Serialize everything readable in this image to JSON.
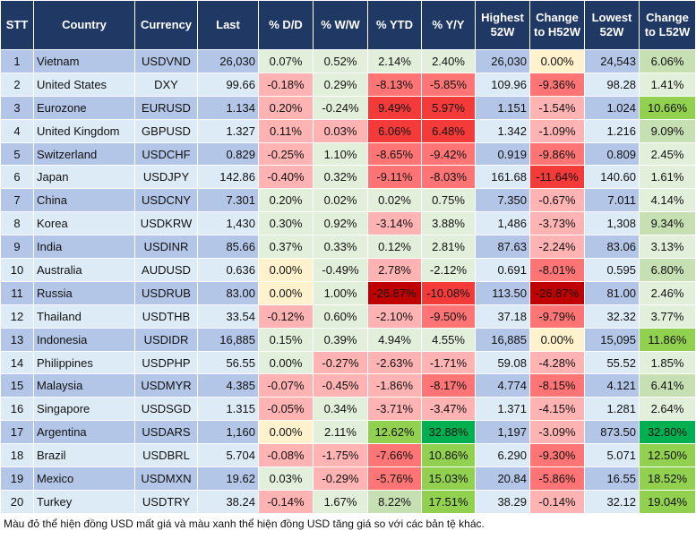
{
  "headers": [
    "STT",
    "Country",
    "Currency",
    "Last",
    "% D/D",
    "% W/W",
    "% YTD",
    "% Y/Y",
    "Highest 52W",
    "Change to H52W",
    "Lowest 52W",
    "Change to L52W"
  ],
  "colors": {
    "header": "#203864",
    "row_odd": "#b4c6e7",
    "row_even": "#ddebf7",
    "light_green": "#e2efda",
    "green2": "#c6e0b4",
    "green3": "#92d050",
    "green4": "#00b050",
    "red1": "#ffb3b3",
    "red2": "#ff7575",
    "red3": "#f53a3a",
    "red4": "#c00000",
    "yellow": "#fff2cc"
  },
  "rows": [
    {
      "stt": "1",
      "country": "Vietnam",
      "currency": "USDVND",
      "last": "26,030",
      "dd": "0.07%",
      "ww": "0.52%",
      "ytd": "2.14%",
      "yy": "2.40%",
      "high": "26,030",
      "ch": "0.00%",
      "low": "24,543",
      "cl": "6.06%",
      "cls": [
        "w",
        "w",
        "w",
        "w",
        "y",
        "g2"
      ]
    },
    {
      "stt": "2",
      "country": "United States",
      "currency": "DXY",
      "last": "99.66",
      "dd": "-0.18%",
      "ww": "0.29%",
      "ytd": "-8.13%",
      "yy": "-5.85%",
      "high": "109.96",
      "ch": "-9.36%",
      "low": "98.28",
      "cl": "1.41%",
      "cls": [
        "r1",
        "w",
        "r2",
        "r2",
        "r2",
        "w"
      ]
    },
    {
      "stt": "3",
      "country": "Eurozone",
      "currency": "EURUSD",
      "last": "1.134",
      "dd": "0.20%",
      "ww": "-0.24%",
      "ytd": "9.49%",
      "yy": "5.97%",
      "high": "1.151",
      "ch": "-1.54%",
      "low": "1.024",
      "cl": "10.66%",
      "cls": [
        "r1",
        "w",
        "r3",
        "r3",
        "r1",
        "g3"
      ]
    },
    {
      "stt": "4",
      "country": "United Kingdom",
      "currency": "GBPUSD",
      "last": "1.327",
      "dd": "0.11%",
      "ww": "0.03%",
      "ytd": "6.06%",
      "yy": "6.48%",
      "high": "1.342",
      "ch": "-1.09%",
      "low": "1.216",
      "cl": "9.09%",
      "cls": [
        "r1",
        "r1",
        "r3",
        "r3",
        "r1",
        "g2"
      ]
    },
    {
      "stt": "5",
      "country": "Switzerland",
      "currency": "USDCHF",
      "last": "0.829",
      "dd": "-0.25%",
      "ww": "1.10%",
      "ytd": "-8.65%",
      "yy": "-9.42%",
      "high": "0.919",
      "ch": "-9.86%",
      "low": "0.809",
      "cl": "2.45%",
      "cls": [
        "r1",
        "w",
        "r2",
        "r2",
        "r2",
        "w"
      ]
    },
    {
      "stt": "6",
      "country": "Japan",
      "currency": "USDJPY",
      "last": "142.86",
      "dd": "-0.40%",
      "ww": "0.32%",
      "ytd": "-9.11%",
      "yy": "-8.03%",
      "high": "161.68",
      "ch": "-11.64%",
      "low": "140.60",
      "cl": "1.61%",
      "cls": [
        "r1",
        "w",
        "r2",
        "r2",
        "r3",
        "w"
      ]
    },
    {
      "stt": "7",
      "country": "China",
      "currency": "USDCNY",
      "last": "7.301",
      "dd": "0.20%",
      "ww": "0.02%",
      "ytd": "0.02%",
      "yy": "0.75%",
      "high": "7.350",
      "ch": "-0.67%",
      "low": "7.011",
      "cl": "4.14%",
      "cls": [
        "w",
        "w",
        "w",
        "w",
        "r1",
        "w"
      ]
    },
    {
      "stt": "8",
      "country": "Korea",
      "currency": "USDKRW",
      "last": "1,430",
      "dd": "0.30%",
      "ww": "0.92%",
      "ytd": "-3.14%",
      "yy": "3.88%",
      "high": "1,486",
      "ch": "-3.73%",
      "low": "1,308",
      "cl": "9.34%",
      "cls": [
        "w",
        "w",
        "r1",
        "w",
        "r1",
        "g2"
      ]
    },
    {
      "stt": "9",
      "country": "India",
      "currency": "USDINR",
      "last": "85.66",
      "dd": "0.37%",
      "ww": "0.33%",
      "ytd": "0.12%",
      "yy": "2.81%",
      "high": "87.63",
      "ch": "-2.24%",
      "low": "83.06",
      "cl": "3.13%",
      "cls": [
        "w",
        "w",
        "w",
        "w",
        "r1",
        "w"
      ]
    },
    {
      "stt": "10",
      "country": "Australia",
      "currency": "AUDUSD",
      "last": "0.636",
      "dd": "0.00%",
      "ww": "-0.49%",
      "ytd": "2.78%",
      "yy": "-2.12%",
      "high": "0.691",
      "ch": "-8.01%",
      "low": "0.595",
      "cl": "6.80%",
      "cls": [
        "y",
        "w",
        "r1",
        "w",
        "r2",
        "g2"
      ]
    },
    {
      "stt": "11",
      "country": "Russia",
      "currency": "USDRUB",
      "last": "83.00",
      "dd": "0.00%",
      "ww": "1.00%",
      "ytd": "-26.87%",
      "yy": "-10.08%",
      "high": "113.50",
      "ch": "-26.87%",
      "low": "81.00",
      "cl": "2.46%",
      "cls": [
        "y",
        "w",
        "r4",
        "r3",
        "r4",
        "w"
      ]
    },
    {
      "stt": "12",
      "country": "Thailand",
      "currency": "USDTHB",
      "last": "33.54",
      "dd": "-0.12%",
      "ww": "0.60%",
      "ytd": "-2.10%",
      "yy": "-9.50%",
      "high": "37.18",
      "ch": "-9.79%",
      "low": "32.32",
      "cl": "3.77%",
      "cls": [
        "r1",
        "w",
        "r1",
        "r2",
        "r2",
        "w"
      ]
    },
    {
      "stt": "13",
      "country": "Indonesia",
      "currency": "USDIDR",
      "last": "16,885",
      "dd": "0.15%",
      "ww": "0.39%",
      "ytd": "4.94%",
      "yy": "4.55%",
      "high": "16,885",
      "ch": "0.00%",
      "low": "15,095",
      "cl": "11.86%",
      "cls": [
        "w",
        "w",
        "w",
        "w",
        "y",
        "g3"
      ]
    },
    {
      "stt": "14",
      "country": "Philippines",
      "currency": "USDPHP",
      "last": "56.55",
      "dd": "0.00%",
      "ww": "-0.27%",
      "ytd": "-2.63%",
      "yy": "-1.71%",
      "high": "59.08",
      "ch": "-4.28%",
      "low": "55.52",
      "cl": "1.85%",
      "cls": [
        "w",
        "r1",
        "r1",
        "r1",
        "r1",
        "w"
      ]
    },
    {
      "stt": "15",
      "country": "Malaysia",
      "currency": "USDMYR",
      "last": "4.385",
      "dd": "-0.07%",
      "ww": "-0.45%",
      "ytd": "-1.86%",
      "yy": "-8.17%",
      "high": "4.774",
      "ch": "-8.15%",
      "low": "4.121",
      "cl": "6.41%",
      "cls": [
        "r1",
        "r1",
        "r1",
        "r2",
        "r2",
        "g2"
      ]
    },
    {
      "stt": "16",
      "country": "Singapore",
      "currency": "USDSGD",
      "last": "1.315",
      "dd": "-0.05%",
      "ww": "0.34%",
      "ytd": "-3.71%",
      "yy": "-3.47%",
      "high": "1.371",
      "ch": "-4.15%",
      "low": "1.281",
      "cl": "2.64%",
      "cls": [
        "r1",
        "w",
        "r1",
        "r1",
        "r1",
        "w"
      ]
    },
    {
      "stt": "17",
      "country": "Argentina",
      "currency": "USDARS",
      "last": "1,160",
      "dd": "0.00%",
      "ww": "2.11%",
      "ytd": "12.62%",
      "yy": "32.88%",
      "high": "1,197",
      "ch": "-3.09%",
      "low": "873.50",
      "cl": "32.80%",
      "cls": [
        "y",
        "w",
        "g3",
        "g4",
        "r1",
        "g4"
      ]
    },
    {
      "stt": "18",
      "country": "Brazil",
      "currency": "USDBRL",
      "last": "5.704",
      "dd": "-0.08%",
      "ww": "-1.75%",
      "ytd": "-7.66%",
      "yy": "10.86%",
      "high": "6.290",
      "ch": "-9.30%",
      "low": "5.071",
      "cl": "12.50%",
      "cls": [
        "r1",
        "r1",
        "r2",
        "g3",
        "r2",
        "g3"
      ]
    },
    {
      "stt": "19",
      "country": "Mexico",
      "currency": "USDMXN",
      "last": "19.62",
      "dd": "0.03%",
      "ww": "-0.29%",
      "ytd": "-5.76%",
      "yy": "15.03%",
      "high": "20.84",
      "ch": "-5.86%",
      "low": "16.55",
      "cl": "18.52%",
      "cls": [
        "w",
        "r1",
        "r2",
        "g3",
        "r2",
        "g3"
      ]
    },
    {
      "stt": "20",
      "country": "Turkey",
      "currency": "USDTRY",
      "last": "38.24",
      "dd": "-0.14%",
      "ww": "1.67%",
      "ytd": "8.22%",
      "yy": "17.51%",
      "high": "38.29",
      "ch": "-0.14%",
      "low": "32.12",
      "cl": "19.04%",
      "cls": [
        "r1",
        "w",
        "g2",
        "g3",
        "r1",
        "g3"
      ]
    }
  ],
  "note": "Màu đỏ thể hiện đồng USD mất giá và màu xanh thể hiện đồng USD tăng giá so với các bản tệ khác."
}
